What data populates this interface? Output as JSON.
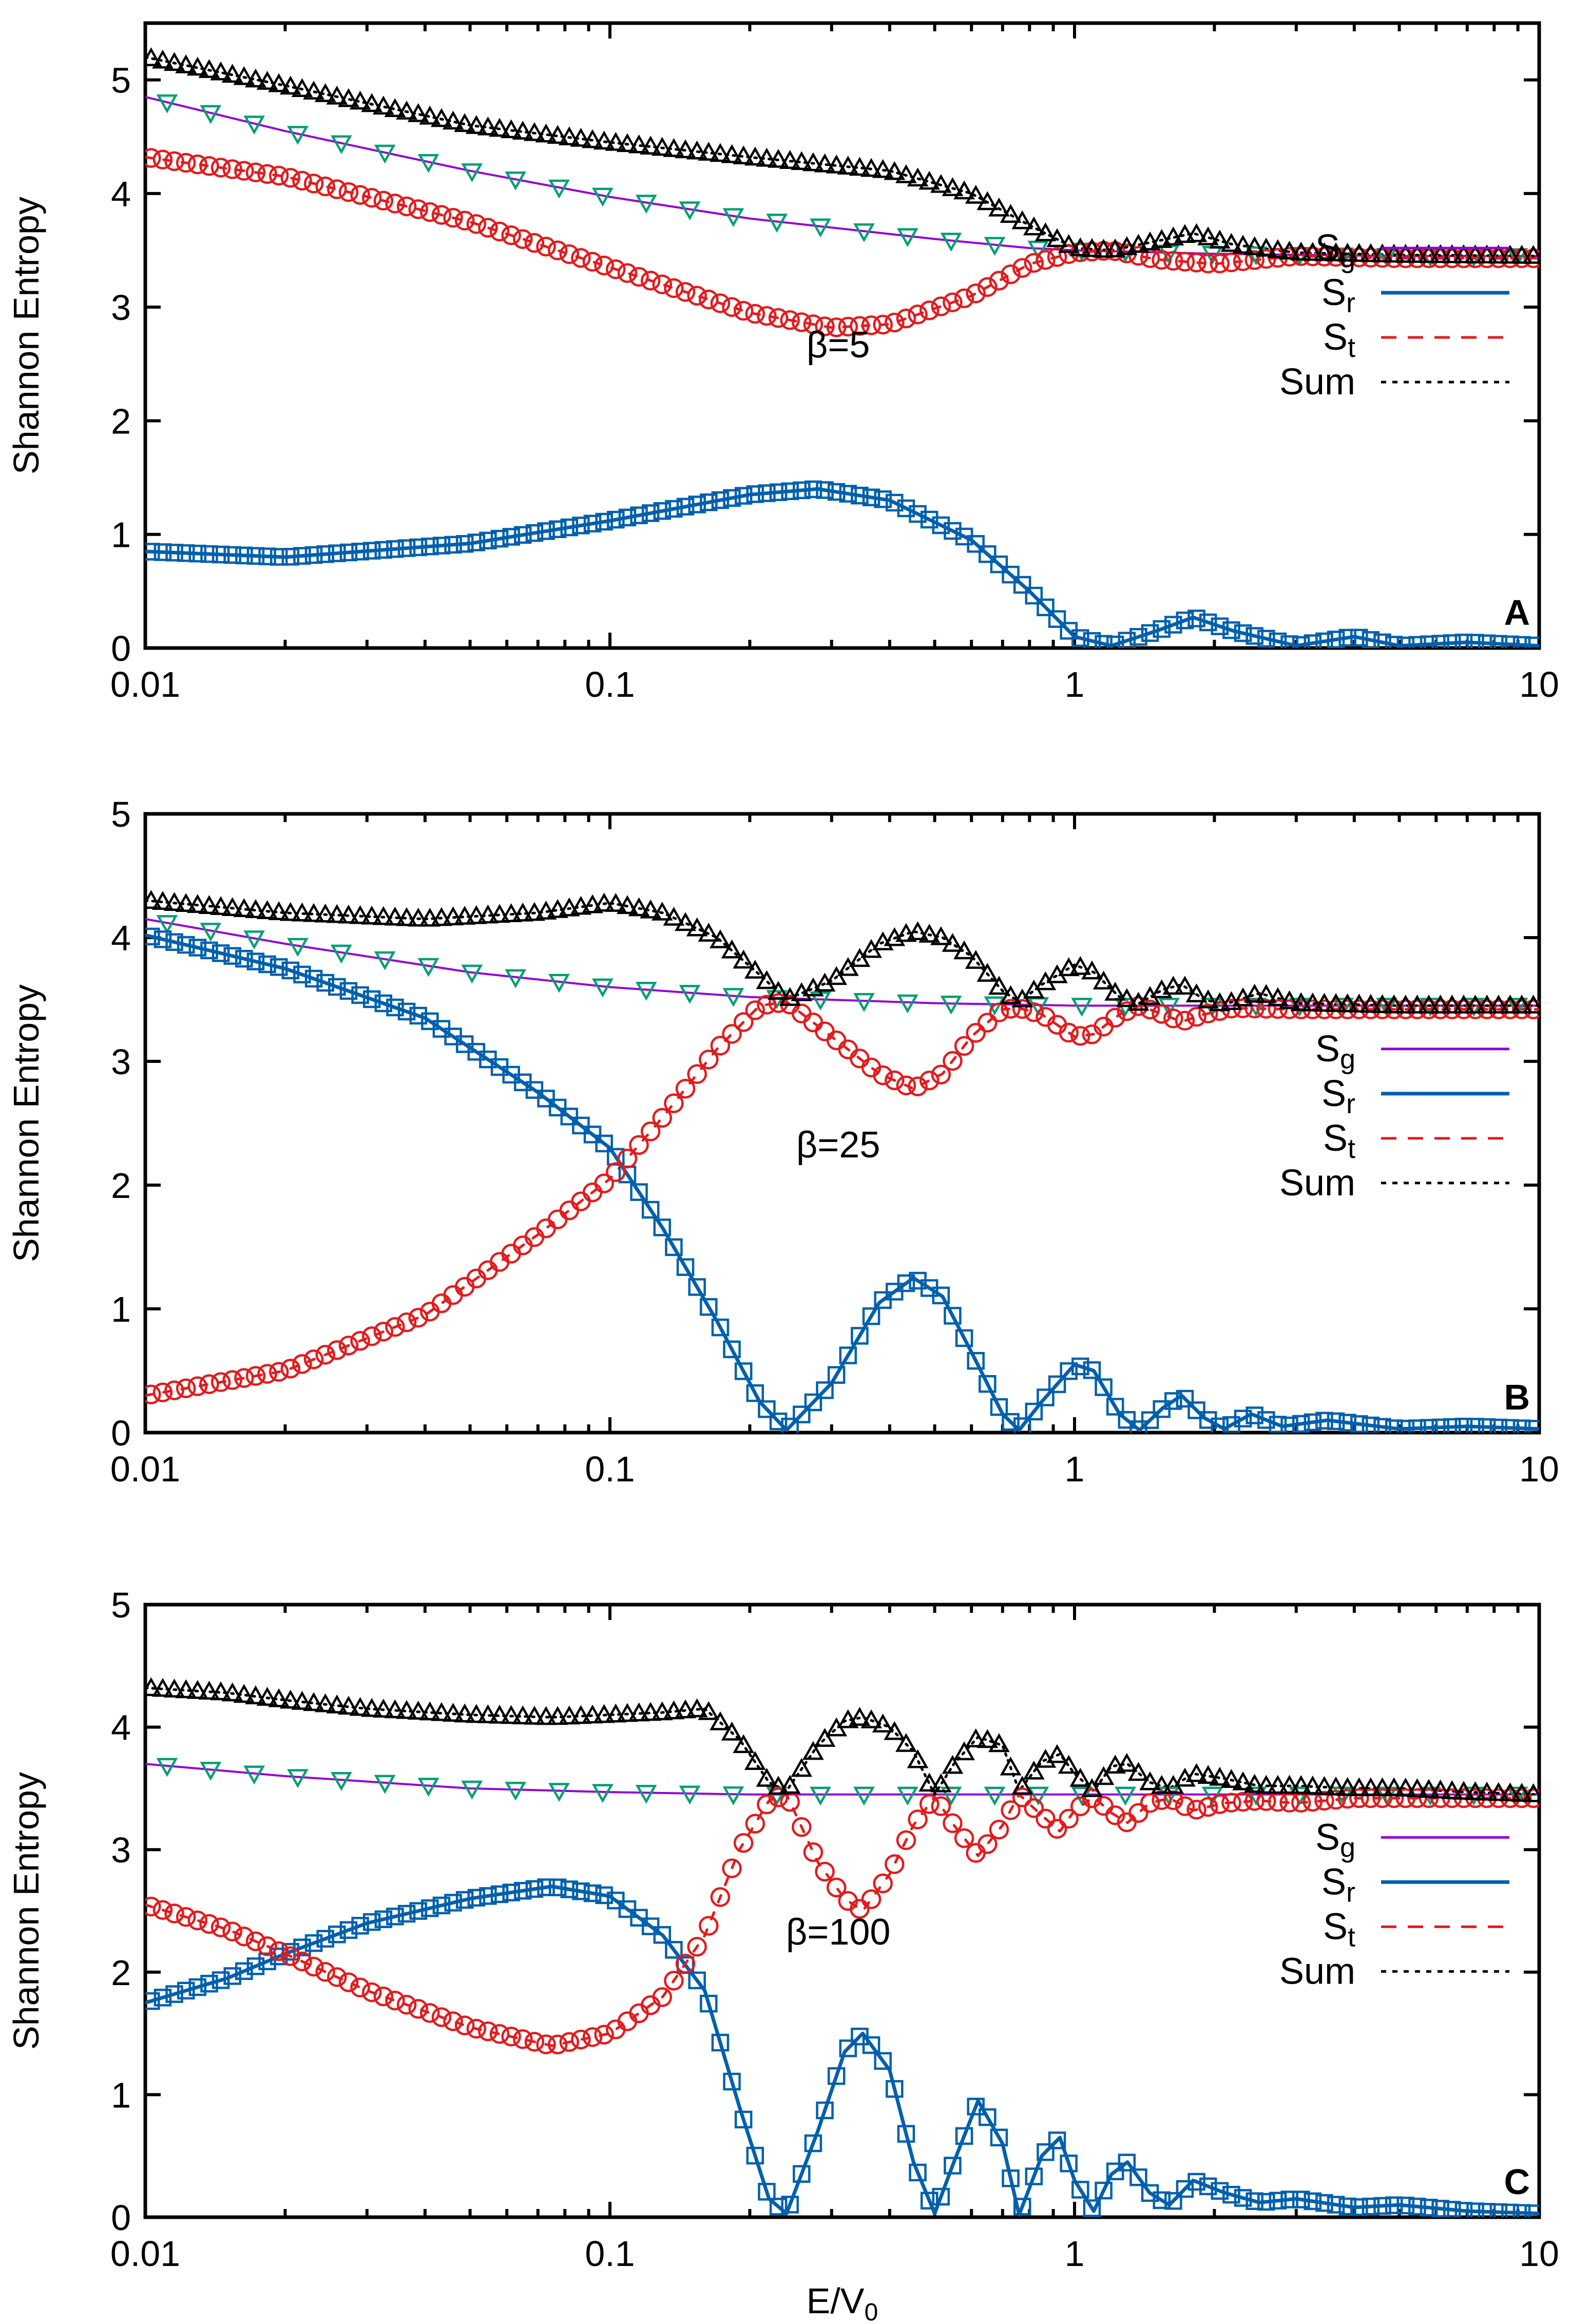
{
  "colors": {
    "Sg": "#9400d3",
    "Sr": "#0060ad",
    "St": "#e41a1c",
    "Sum": "#000000",
    "Sg_marker": "#009e73"
  },
  "xlabel": "E/V",
  "xlabel_sub": "0",
  "ylabel": "Shannon Entropy",
  "legend": [
    {
      "key": "Sg",
      "main": "S",
      "sub": "g",
      "style": "solid",
      "color": "#9400d3"
    },
    {
      "key": "Sr",
      "main": "S",
      "sub": "r",
      "style": "solid",
      "color": "#0060ad"
    },
    {
      "key": "St",
      "main": "S",
      "sub": "t",
      "style": "dashed",
      "color": "#e41a1c"
    },
    {
      "key": "Sum",
      "main": "Sum",
      "sub": "",
      "style": "dotted",
      "color": "#000000"
    }
  ],
  "chart_data": [
    {
      "type": "line",
      "panel": "A",
      "annotation": "β=5",
      "xscale": "log",
      "xlim": [
        0.01,
        10
      ],
      "ylim": [
        0,
        5.5
      ],
      "xticks": [
        "0.01",
        "0.1",
        "1",
        "10"
      ],
      "yticks": [
        "0",
        "1",
        "2",
        "3",
        "4",
        "5"
      ],
      "series": [
        {
          "key": "Sg",
          "name": "Sg",
          "x": [
            0.01,
            0.02,
            0.05,
            0.1,
            0.2,
            0.5,
            0.8,
            1,
            2,
            5,
            10
          ],
          "y": [
            4.85,
            4.55,
            4.2,
            3.97,
            3.78,
            3.6,
            3.52,
            3.5,
            3.47,
            3.45,
            3.45
          ]
        },
        {
          "key": "Sr",
          "name": "Sr",
          "x": [
            0.01,
            0.02,
            0.05,
            0.1,
            0.2,
            0.28,
            0.4,
            0.6,
            0.8,
            1.0,
            1.2,
            1.5,
            1.8,
            2.2,
            3,
            4,
            5,
            7,
            10
          ],
          "y": [
            0.85,
            0.8,
            0.92,
            1.12,
            1.35,
            1.4,
            1.3,
            0.95,
            0.5,
            0.1,
            0.02,
            0.15,
            0.27,
            0.15,
            0.02,
            0.1,
            0.02,
            0.05,
            0.02
          ]
        },
        {
          "key": "St",
          "name": "St",
          "x": [
            0.01,
            0.02,
            0.05,
            0.1,
            0.2,
            0.3,
            0.4,
            0.6,
            0.8,
            1.0,
            1.2,
            1.5,
            2,
            3,
            5,
            10
          ],
          "y": [
            4.32,
            4.15,
            3.75,
            3.35,
            2.95,
            2.82,
            2.85,
            3.1,
            3.38,
            3.48,
            3.5,
            3.42,
            3.38,
            3.45,
            3.43,
            3.43
          ]
        },
        {
          "key": "Sum",
          "name": "Sum",
          "x": [
            0.01,
            0.02,
            0.05,
            0.1,
            0.2,
            0.4,
            0.6,
            0.8,
            1.0,
            1.2,
            1.5,
            1.8,
            2.2,
            3,
            5,
            10
          ],
          "y": [
            5.2,
            4.95,
            4.6,
            4.45,
            4.32,
            4.2,
            4.0,
            3.72,
            3.52,
            3.5,
            3.58,
            3.65,
            3.55,
            3.48,
            3.46,
            3.45
          ]
        }
      ]
    },
    {
      "type": "line",
      "panel": "B",
      "annotation": "β=25",
      "xscale": "log",
      "xlim": [
        0.01,
        10
      ],
      "ylim": [
        0,
        5
      ],
      "xticks": [
        "0.01",
        "0.1",
        "1",
        "10"
      ],
      "yticks": [
        "0",
        "1",
        "2",
        "3",
        "4",
        "5"
      ],
      "series": [
        {
          "key": "Sg",
          "name": "Sg",
          "x": [
            0.01,
            0.02,
            0.05,
            0.1,
            0.2,
            0.5,
            1,
            2,
            5,
            10
          ],
          "y": [
            4.15,
            3.95,
            3.72,
            3.6,
            3.52,
            3.47,
            3.45,
            3.45,
            3.45,
            3.45
          ]
        },
        {
          "key": "Sr",
          "name": "Sr",
          "x": [
            0.01,
            0.02,
            0.04,
            0.07,
            0.1,
            0.13,
            0.17,
            0.21,
            0.24,
            0.3,
            0.38,
            0.45,
            0.52,
            0.6,
            0.7,
            0.76,
            0.85,
            1.0,
            1.1,
            1.25,
            1.38,
            1.55,
            1.7,
            1.9,
            2.1,
            2.4,
            2.8,
            3.5,
            5,
            7,
            10
          ],
          "y": [
            4.02,
            3.75,
            3.35,
            2.75,
            2.3,
            1.65,
            0.9,
            0.25,
            0.02,
            0.4,
            1.05,
            1.25,
            1.1,
            0.65,
            0.15,
            0.02,
            0.25,
            0.55,
            0.5,
            0.15,
            0.02,
            0.2,
            0.3,
            0.12,
            0.03,
            0.15,
            0.05,
            0.1,
            0.03,
            0.05,
            0.03
          ]
        },
        {
          "key": "St",
          "name": "St",
          "x": [
            0.01,
            0.02,
            0.04,
            0.07,
            0.1,
            0.13,
            0.17,
            0.21,
            0.24,
            0.3,
            0.38,
            0.45,
            0.52,
            0.6,
            0.7,
            0.76,
            0.85,
            1.0,
            1.1,
            1.25,
            1.38,
            1.55,
            1.7,
            1.9,
            2.2,
            3,
            5,
            10
          ],
          "y": [
            0.3,
            0.5,
            0.95,
            1.6,
            2.05,
            2.55,
            3.1,
            3.45,
            3.48,
            3.2,
            2.9,
            2.78,
            2.9,
            3.2,
            3.42,
            3.43,
            3.38,
            3.2,
            3.22,
            3.38,
            3.45,
            3.38,
            3.32,
            3.38,
            3.43,
            3.42,
            3.42,
            3.42
          ]
        },
        {
          "key": "Sum",
          "name": "Sum",
          "x": [
            0.01,
            0.02,
            0.04,
            0.07,
            0.1,
            0.13,
            0.17,
            0.21,
            0.24,
            0.3,
            0.38,
            0.45,
            0.52,
            0.6,
            0.7,
            0.76,
            0.85,
            1.0,
            1.1,
            1.25,
            1.38,
            1.55,
            1.7,
            1.9,
            2.1,
            2.5,
            3,
            5,
            10
          ],
          "y": [
            4.3,
            4.2,
            4.15,
            4.2,
            4.28,
            4.2,
            4.0,
            3.7,
            3.5,
            3.65,
            3.95,
            4.05,
            4.0,
            3.85,
            3.57,
            3.48,
            3.62,
            3.78,
            3.72,
            3.52,
            3.47,
            3.58,
            3.62,
            3.5,
            3.46,
            3.55,
            3.47,
            3.45,
            3.45
          ]
        }
      ]
    },
    {
      "type": "line",
      "panel": "C",
      "annotation": "β=100",
      "xscale": "log",
      "xlim": [
        0.01,
        10
      ],
      "ylim": [
        0,
        5
      ],
      "xticks": [
        "0.01",
        "0.1",
        "1",
        "10"
      ],
      "yticks": [
        "0",
        "1",
        "2",
        "3",
        "4",
        "5"
      ],
      "series": [
        {
          "key": "Sg",
          "name": "Sg",
          "x": [
            0.01,
            0.02,
            0.05,
            0.1,
            0.2,
            0.5,
            1,
            2,
            5,
            10
          ],
          "y": [
            3.7,
            3.6,
            3.5,
            3.47,
            3.45,
            3.45,
            3.45,
            3.45,
            3.45,
            3.45
          ]
        },
        {
          "key": "Sr",
          "name": "Sr",
          "x": [
            0.01,
            0.015,
            0.02,
            0.03,
            0.05,
            0.075,
            0.1,
            0.13,
            0.16,
            0.19,
            0.22,
            0.24,
            0.28,
            0.32,
            0.35,
            0.4,
            0.45,
            0.5,
            0.55,
            0.62,
            0.7,
            0.76,
            0.85,
            0.93,
            1.0,
            1.1,
            1.2,
            1.3,
            1.45,
            1.6,
            1.8,
            2.1,
            2.5,
            3,
            4,
            5,
            7,
            10
          ],
          "y": [
            1.75,
            1.95,
            2.15,
            2.4,
            2.6,
            2.7,
            2.62,
            2.3,
            1.85,
            0.9,
            0.15,
            0.03,
            0.7,
            1.35,
            1.5,
            1.2,
            0.45,
            0.03,
            0.45,
            0.95,
            0.6,
            0.02,
            0.5,
            0.65,
            0.3,
            0.05,
            0.35,
            0.45,
            0.2,
            0.1,
            0.3,
            0.2,
            0.12,
            0.15,
            0.08,
            0.1,
            0.05,
            0.03
          ]
        },
        {
          "key": "St",
          "name": "St",
          "x": [
            0.01,
            0.015,
            0.02,
            0.03,
            0.05,
            0.075,
            0.1,
            0.13,
            0.16,
            0.19,
            0.22,
            0.24,
            0.28,
            0.32,
            0.35,
            0.4,
            0.45,
            0.5,
            0.55,
            0.62,
            0.7,
            0.76,
            0.85,
            0.93,
            1.0,
            1.1,
            1.2,
            1.3,
            1.45,
            1.6,
            1.8,
            2.1,
            2.5,
            3,
            4,
            5,
            7,
            10
          ],
          "y": [
            2.55,
            2.35,
            2.15,
            1.85,
            1.55,
            1.4,
            1.5,
            1.8,
            2.3,
            3.0,
            3.4,
            3.45,
            2.9,
            2.6,
            2.5,
            2.8,
            3.2,
            3.43,
            3.2,
            2.95,
            3.2,
            3.45,
            3.28,
            3.15,
            3.32,
            3.43,
            3.3,
            3.22,
            3.38,
            3.42,
            3.32,
            3.38,
            3.4,
            3.38,
            3.42,
            3.42,
            3.42,
            3.42
          ]
        },
        {
          "key": "Sum",
          "name": "Sum",
          "x": [
            0.01,
            0.015,
            0.02,
            0.03,
            0.05,
            0.075,
            0.1,
            0.13,
            0.16,
            0.19,
            0.22,
            0.24,
            0.28,
            0.32,
            0.35,
            0.4,
            0.45,
            0.5,
            0.55,
            0.62,
            0.7,
            0.76,
            0.85,
            0.93,
            1.0,
            1.1,
            1.2,
            1.3,
            1.45,
            1.6,
            1.8,
            2.1,
            2.5,
            3,
            4,
            5,
            7,
            10
          ],
          "y": [
            4.32,
            4.28,
            4.22,
            4.15,
            4.1,
            4.08,
            4.1,
            4.12,
            4.15,
            3.9,
            3.55,
            3.48,
            3.85,
            4.05,
            4.08,
            4.0,
            3.8,
            3.45,
            3.7,
            3.92,
            3.85,
            3.48,
            3.72,
            3.78,
            3.62,
            3.48,
            3.68,
            3.7,
            3.55,
            3.5,
            3.62,
            3.58,
            3.52,
            3.52,
            3.5,
            3.5,
            3.47,
            3.45
          ]
        }
      ]
    }
  ]
}
